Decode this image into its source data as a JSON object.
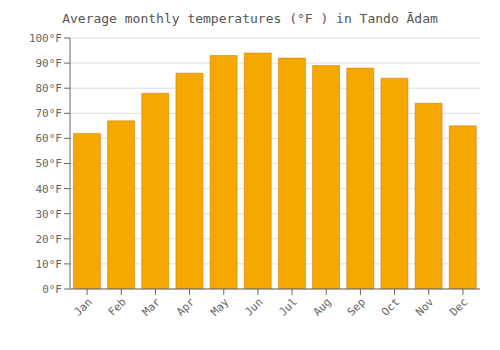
{
  "chart_data": {
    "type": "bar",
    "title": "Average monthly temperatures (°F ) in Tando Ādam",
    "categories": [
      "Jan",
      "Feb",
      "Mar",
      "Apr",
      "May",
      "Jun",
      "Jul",
      "Aug",
      "Sep",
      "Oct",
      "Nov",
      "Dec"
    ],
    "values": [
      62,
      67,
      78,
      86,
      93,
      94,
      92,
      89,
      88,
      84,
      74,
      65
    ],
    "color": "#F5A800",
    "ylim": [
      0,
      100
    ],
    "yticks": [
      {
        "value": 0,
        "label": "0°F"
      },
      {
        "value": 10,
        "label": "10°F"
      },
      {
        "value": 20,
        "label": "20°F"
      },
      {
        "value": 30,
        "label": "30°F"
      },
      {
        "value": 40,
        "label": "40°F"
      },
      {
        "value": 50,
        "label": "50°F"
      },
      {
        "value": 60,
        "label": "60°F"
      },
      {
        "value": 70,
        "label": "70°F"
      },
      {
        "value": 80,
        "label": "80°F"
      },
      {
        "value": 90,
        "label": "90°F"
      },
      {
        "value": 100,
        "label": "100°F"
      }
    ],
    "grid": true
  }
}
